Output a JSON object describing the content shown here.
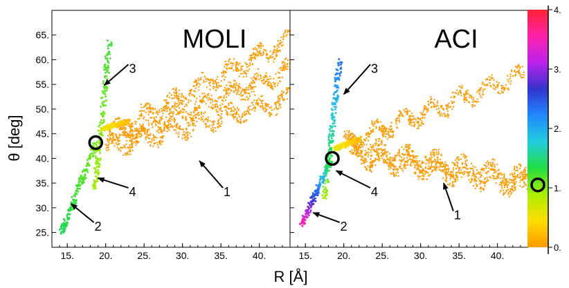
{
  "chart_data": {
    "type": "scatter",
    "xlabel": "R [Å]",
    "ylabel": "θ [deg]",
    "xlim": [
      13,
      44
    ],
    "ylim": [
      22,
      70
    ],
    "x_ticks": [
      15,
      20,
      25,
      30,
      35,
      40
    ],
    "x_tick_labels": [
      "15.",
      "20.",
      "25.",
      "30.",
      "35.",
      "40."
    ],
    "y_ticks": [
      25,
      30,
      35,
      40,
      45,
      50,
      55,
      60,
      65
    ],
    "y_tick_labels": [
      "25.",
      "30.",
      "35.",
      "40.",
      "45.",
      "50.",
      "55.",
      "60.",
      "65."
    ],
    "colorbar": {
      "range": [
        0,
        4
      ],
      "labels": [
        "0.",
        "1.",
        "2.",
        "3.",
        "4."
      ],
      "colors": [
        "#ff9900",
        "#ffdd00",
        "#aaee00",
        "#22dd44",
        "#22ccdd",
        "#2288ff",
        "#3333cc",
        "#bb22ee",
        "#ff22aa",
        "#ff2233"
      ],
      "marker_value": 1.05
    },
    "panels": [
      {
        "title": "MOLI",
        "marker": {
          "x": 18.7,
          "y": 43.2
        },
        "segments": [
          {
            "from": [
              18.6,
              33.8
            ],
            "to": [
              20.5,
              63.5
            ],
            "color_from": 0.9,
            "color_to": 1.25
          },
          {
            "from": [
              14.2,
              24.8
            ],
            "to": [
              18.7,
              43.0
            ],
            "color_from": 1.4,
            "color_to": 1.05
          },
          {
            "from": [
              19.5,
              46.0
            ],
            "to": [
              23.0,
              47.5
            ],
            "color_from": 0.6,
            "color_to": 0.2
          }
        ],
        "bands": [
          {
            "from": [
              20.5,
              45.0
            ],
            "to": [
              44.0,
              64.0
            ]
          },
          {
            "from": [
              21.0,
              43.5
            ],
            "to": [
              44.0,
              58.0
            ]
          },
          {
            "from": [
              20.0,
              42.0
            ],
            "to": [
              44.0,
              52.0
            ]
          }
        ],
        "annotations": [
          {
            "label": "1",
            "text_xy": [
              35.8,
              33.2
            ],
            "arrow_to": [
              32.2,
              39.5
            ]
          },
          {
            "label": "2",
            "text_xy": [
              19.0,
              26.2
            ],
            "arrow_to": [
              15.5,
              30.8
            ]
          },
          {
            "label": "3",
            "text_xy": [
              23.5,
              58.2
            ],
            "arrow_to": [
              19.8,
              54.8
            ]
          },
          {
            "label": "4",
            "text_xy": [
              23.5,
              33.2
            ],
            "arrow_to": [
              19.0,
              36.0
            ]
          }
        ]
      },
      {
        "title": "ACI",
        "marker": {
          "x": 18.5,
          "y": 40.0
        },
        "segments": [
          {
            "from": [
              17.5,
              32.0
            ],
            "to": [
              19.5,
              60.5
            ],
            "color_from": 0.9,
            "color_to": 2.4
          },
          {
            "from": [
              14.5,
              26.5
            ],
            "to": [
              18.3,
              39.8
            ],
            "color_from": 3.6,
            "color_to": 1.2
          },
          {
            "from": [
              19.0,
              42.0
            ],
            "to": [
              22.0,
              44.0
            ],
            "color_from": 0.6,
            "color_to": 0.2
          }
        ],
        "bands": [
          {
            "from": [
              20.0,
              43.0
            ],
            "to": [
              43.5,
              57.0
            ]
          },
          {
            "from": [
              20.5,
              42.5
            ],
            "to": [
              44.0,
              36.0
            ]
          },
          {
            "from": [
              21.0,
              40.5
            ],
            "to": [
              44.0,
              34.0
            ]
          }
        ],
        "annotations": [
          {
            "label": "1",
            "text_xy": [
              34.8,
              28.5
            ],
            "arrow_to": [
              33.0,
              35.0
            ]
          },
          {
            "label": "2",
            "text_xy": [
              20.0,
              26.2
            ],
            "arrow_to": [
              16.0,
              29.0
            ]
          },
          {
            "label": "3",
            "text_xy": [
              24.0,
              58.2
            ],
            "arrow_to": [
              20.0,
              53.0
            ]
          },
          {
            "label": "4",
            "text_xy": [
              24.0,
              33.2
            ],
            "arrow_to": [
              19.0,
              37.5
            ]
          }
        ]
      }
    ]
  }
}
